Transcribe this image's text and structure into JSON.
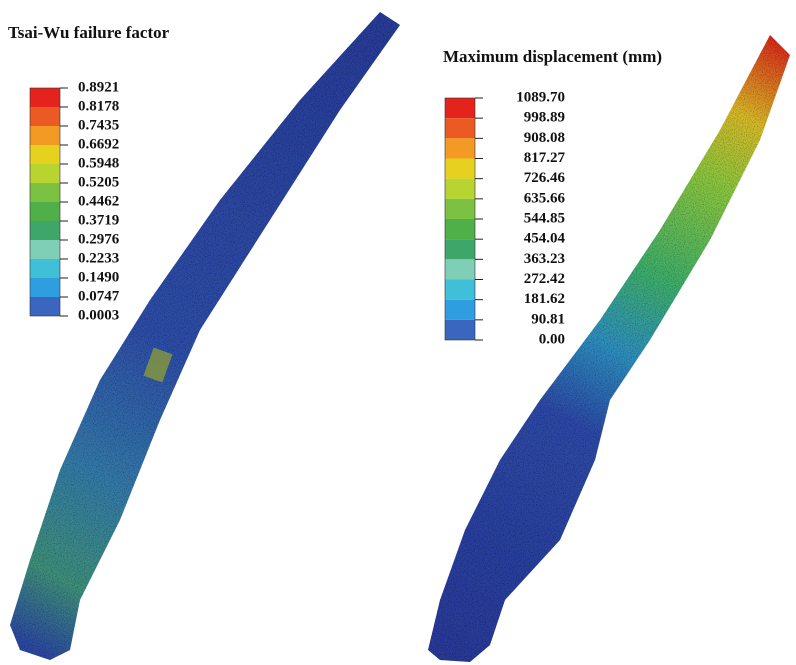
{
  "panels": [
    {
      "title": "Tsai-Wu failure factor",
      "legend": {
        "labels": [
          "0.8921",
          "0.8178",
          "0.7435",
          "0.6692",
          "0.5948",
          "0.5205",
          "0.4462",
          "0.3719",
          "0.2976",
          "0.2233",
          "0.1490",
          "0.0747",
          "0.0003"
        ],
        "colors": [
          "#e3231c",
          "#ec5a24",
          "#f39a25",
          "#e6d21e",
          "#b8d431",
          "#7cc242",
          "#4fb04a",
          "#3fa66a",
          "#7fcfb7",
          "#3fbfd8",
          "#2f9ee0",
          "#3a66bf"
        ]
      }
    },
    {
      "title": "Maximum displacement (mm)",
      "legend": {
        "labels": [
          "1089.70",
          "998.89",
          "908.08",
          "817.27",
          "726.46",
          "635.66",
          "544.85",
          "454.04",
          "363.23",
          "272.42",
          "181.62",
          "90.81",
          "0.00"
        ],
        "colors": [
          "#e3231c",
          "#ec5a24",
          "#f39a25",
          "#e6d21e",
          "#b8d431",
          "#7cc242",
          "#4fb04a",
          "#3fa66a",
          "#7fcfb7",
          "#3fbfd8",
          "#2f9ee0",
          "#3a66bf"
        ]
      }
    }
  ]
}
